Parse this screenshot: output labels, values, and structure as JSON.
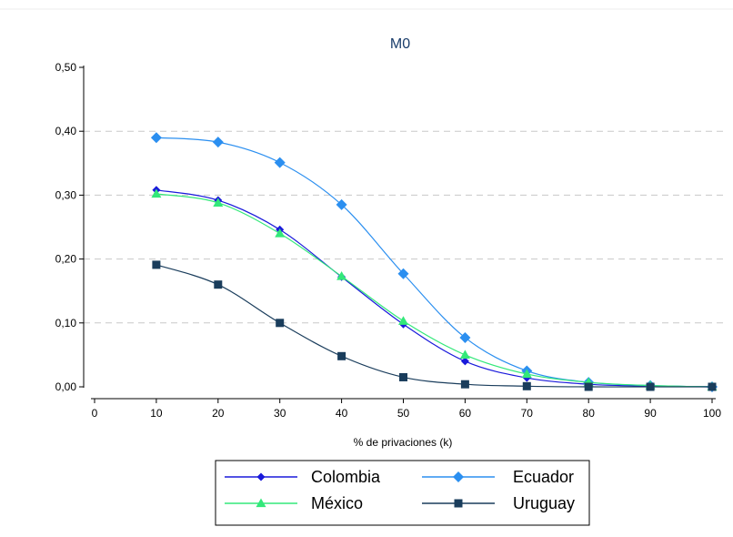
{
  "chart_data": {
    "type": "line",
    "title": "M0",
    "xlabel": "% de privaciones (k)",
    "ylabel": "",
    "xlim": [
      0,
      100
    ],
    "ylim": [
      0,
      0.5
    ],
    "x_ticks": [
      0,
      10,
      20,
      30,
      40,
      50,
      60,
      70,
      80,
      90,
      100
    ],
    "x_tick_labels": [
      "0",
      "10",
      "20",
      "30",
      "40",
      "50",
      "60",
      "70",
      "80",
      "90",
      "100"
    ],
    "y_ticks": [
      0,
      0.1,
      0.2,
      0.3,
      0.4,
      0.5
    ],
    "y_tick_labels": [
      "0,00",
      "0,10",
      "0,20",
      "0,30",
      "0,40",
      "0,50"
    ],
    "grid": "horizontal dashed",
    "legend_position": "bottom",
    "x": [
      10,
      20,
      30,
      40,
      50,
      60,
      70,
      80,
      90,
      100
    ],
    "series": [
      {
        "name": "Colombia",
        "color": "#1a1adb",
        "marker": "diamond",
        "values": [
          0.308,
          0.292,
          0.246,
          0.172,
          0.098,
          0.04,
          0.014,
          0.004,
          0.001,
          0.0
        ]
      },
      {
        "name": "Ecuador",
        "color": "#2b8ff0",
        "marker": "diamond-large",
        "values": [
          0.39,
          0.383,
          0.351,
          0.285,
          0.177,
          0.077,
          0.025,
          0.007,
          0.002,
          0.0
        ]
      },
      {
        "name": "México",
        "color": "#33e87a",
        "marker": "triangle",
        "values": [
          0.302,
          0.288,
          0.24,
          0.173,
          0.103,
          0.05,
          0.02,
          0.007,
          0.002,
          0.0
        ]
      },
      {
        "name": "Uruguay",
        "color": "#1a3d5c",
        "marker": "square",
        "values": [
          0.191,
          0.16,
          0.1,
          0.048,
          0.015,
          0.004,
          0.001,
          0.0,
          0.0,
          0.0
        ]
      }
    ]
  }
}
